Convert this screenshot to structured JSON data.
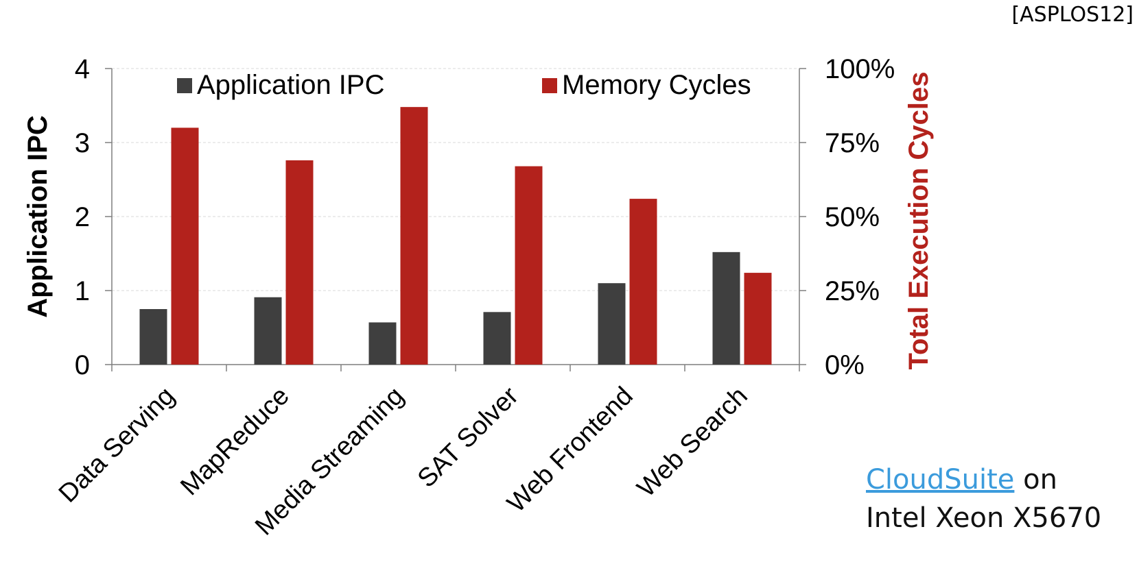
{
  "citation": "[ASPLOS12]",
  "caption": {
    "link_text": "CloudSuite",
    "line1_rest": " on",
    "line2": "Intel Xeon X5670"
  },
  "chart_data": {
    "type": "bar",
    "categories": [
      "Data Serving",
      "MapReduce",
      "Media Streaming",
      "SAT Solver",
      "Web Frontend",
      "Web Search"
    ],
    "series": [
      {
        "name": "Application IPC",
        "axis": "left",
        "values": [
          0.75,
          0.91,
          0.57,
          0.71,
          1.1,
          1.52
        ],
        "color": "#3f3f3f"
      },
      {
        "name": "Memory Cycles",
        "axis": "right",
        "values": [
          80,
          69,
          87,
          67,
          56,
          31
        ],
        "color": "#b3221c"
      }
    ],
    "ylabel": "Application IPC",
    "ylim": [
      0,
      4
    ],
    "yticks": [
      "0",
      "1",
      "2",
      "3",
      "4"
    ],
    "y2label": "Total Execution Cycles",
    "y2lim": [
      0,
      100
    ],
    "y2ticks": [
      "0%",
      "25%",
      "50%",
      "75%",
      "100%"
    ],
    "grid": true,
    "legend": "top"
  }
}
